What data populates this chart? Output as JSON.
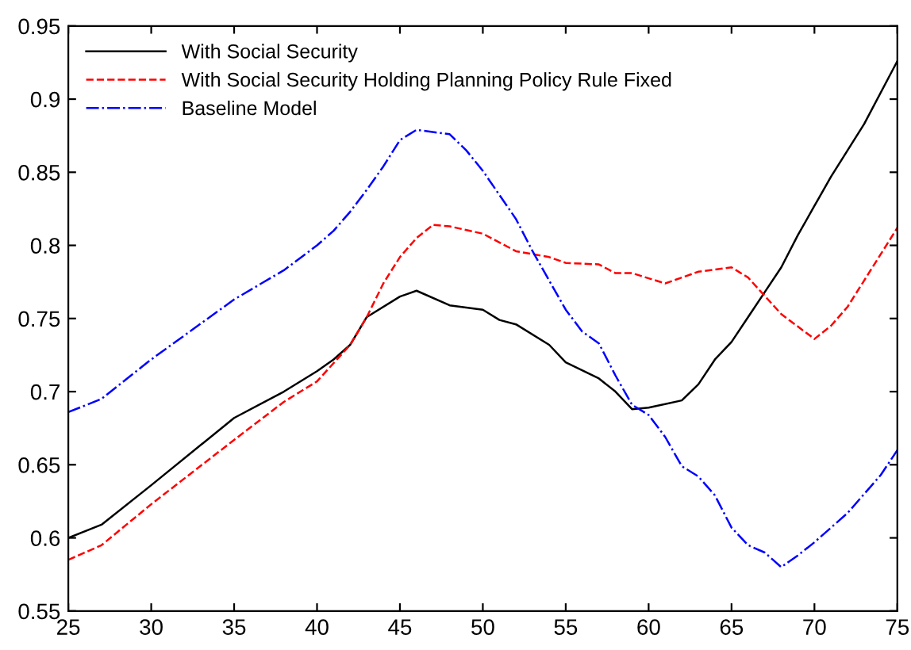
{
  "chart_data": {
    "type": "line",
    "xlim": [
      25,
      75
    ],
    "ylim": [
      0.55,
      0.95
    ],
    "xticks": [
      25,
      30,
      35,
      40,
      45,
      50,
      55,
      60,
      65,
      70,
      75
    ],
    "yticks": [
      0.55,
      0.6,
      0.65,
      0.7,
      0.75,
      0.8,
      0.85,
      0.9,
      0.95
    ],
    "grid": false,
    "legend": "top left",
    "marker": "none",
    "series": [
      {
        "name": "With Social Security",
        "color": "#000000",
        "line_style": "solid",
        "x": [
          25,
          27,
          30,
          35,
          38,
          40,
          41,
          42,
          43,
          45,
          46,
          48,
          50,
          51,
          52,
          54,
          55,
          57,
          58,
          59,
          60,
          62,
          63,
          64,
          65,
          66,
          67,
          68,
          69,
          70,
          71,
          72,
          73,
          75
        ],
        "values": [
          0.6,
          0.609,
          0.636,
          0.682,
          0.7,
          0.714,
          0.722,
          0.732,
          0.751,
          0.765,
          0.769,
          0.759,
          0.756,
          0.749,
          0.746,
          0.732,
          0.72,
          0.709,
          0.7,
          0.688,
          0.689,
          0.694,
          0.705,
          0.722,
          0.734,
          0.751,
          0.768,
          0.785,
          0.807,
          0.827,
          0.847,
          0.865,
          0.883,
          0.926
        ]
      },
      {
        "name": "With Social Security Holding Planning Policy Rule Fixed",
        "color": "#ff0000",
        "line_style": "dashed",
        "x": [
          25,
          27,
          30,
          35,
          38,
          40,
          42,
          43,
          44,
          45,
          46,
          47,
          48,
          50,
          52,
          54,
          55,
          57,
          58,
          59,
          61,
          63,
          65,
          66,
          68,
          70,
          71,
          72,
          73,
          75
        ],
        "values": [
          0.585,
          0.595,
          0.623,
          0.667,
          0.693,
          0.707,
          0.732,
          0.751,
          0.774,
          0.792,
          0.805,
          0.814,
          0.813,
          0.808,
          0.796,
          0.792,
          0.788,
          0.787,
          0.781,
          0.781,
          0.774,
          0.782,
          0.785,
          0.778,
          0.753,
          0.736,
          0.745,
          0.758,
          0.776,
          0.812
        ]
      },
      {
        "name": "Baseline Model",
        "color": "#0000ff",
        "line_style": "dashdot",
        "x": [
          25,
          27,
          30,
          35,
          38,
          40,
          41,
          42,
          43,
          44,
          45,
          46,
          48,
          49,
          50,
          52,
          53,
          55,
          56,
          57,
          58,
          59,
          60,
          61,
          62,
          63,
          64,
          65,
          66,
          67,
          68,
          69,
          70,
          72,
          74,
          75
        ],
        "values": [
          0.686,
          0.695,
          0.722,
          0.763,
          0.783,
          0.8,
          0.81,
          0.823,
          0.838,
          0.854,
          0.872,
          0.879,
          0.876,
          0.865,
          0.851,
          0.818,
          0.796,
          0.756,
          0.741,
          0.733,
          0.711,
          0.691,
          0.684,
          0.669,
          0.649,
          0.642,
          0.629,
          0.607,
          0.595,
          0.59,
          0.58,
          0.588,
          0.597,
          0.617,
          0.643,
          0.66
        ]
      }
    ]
  }
}
